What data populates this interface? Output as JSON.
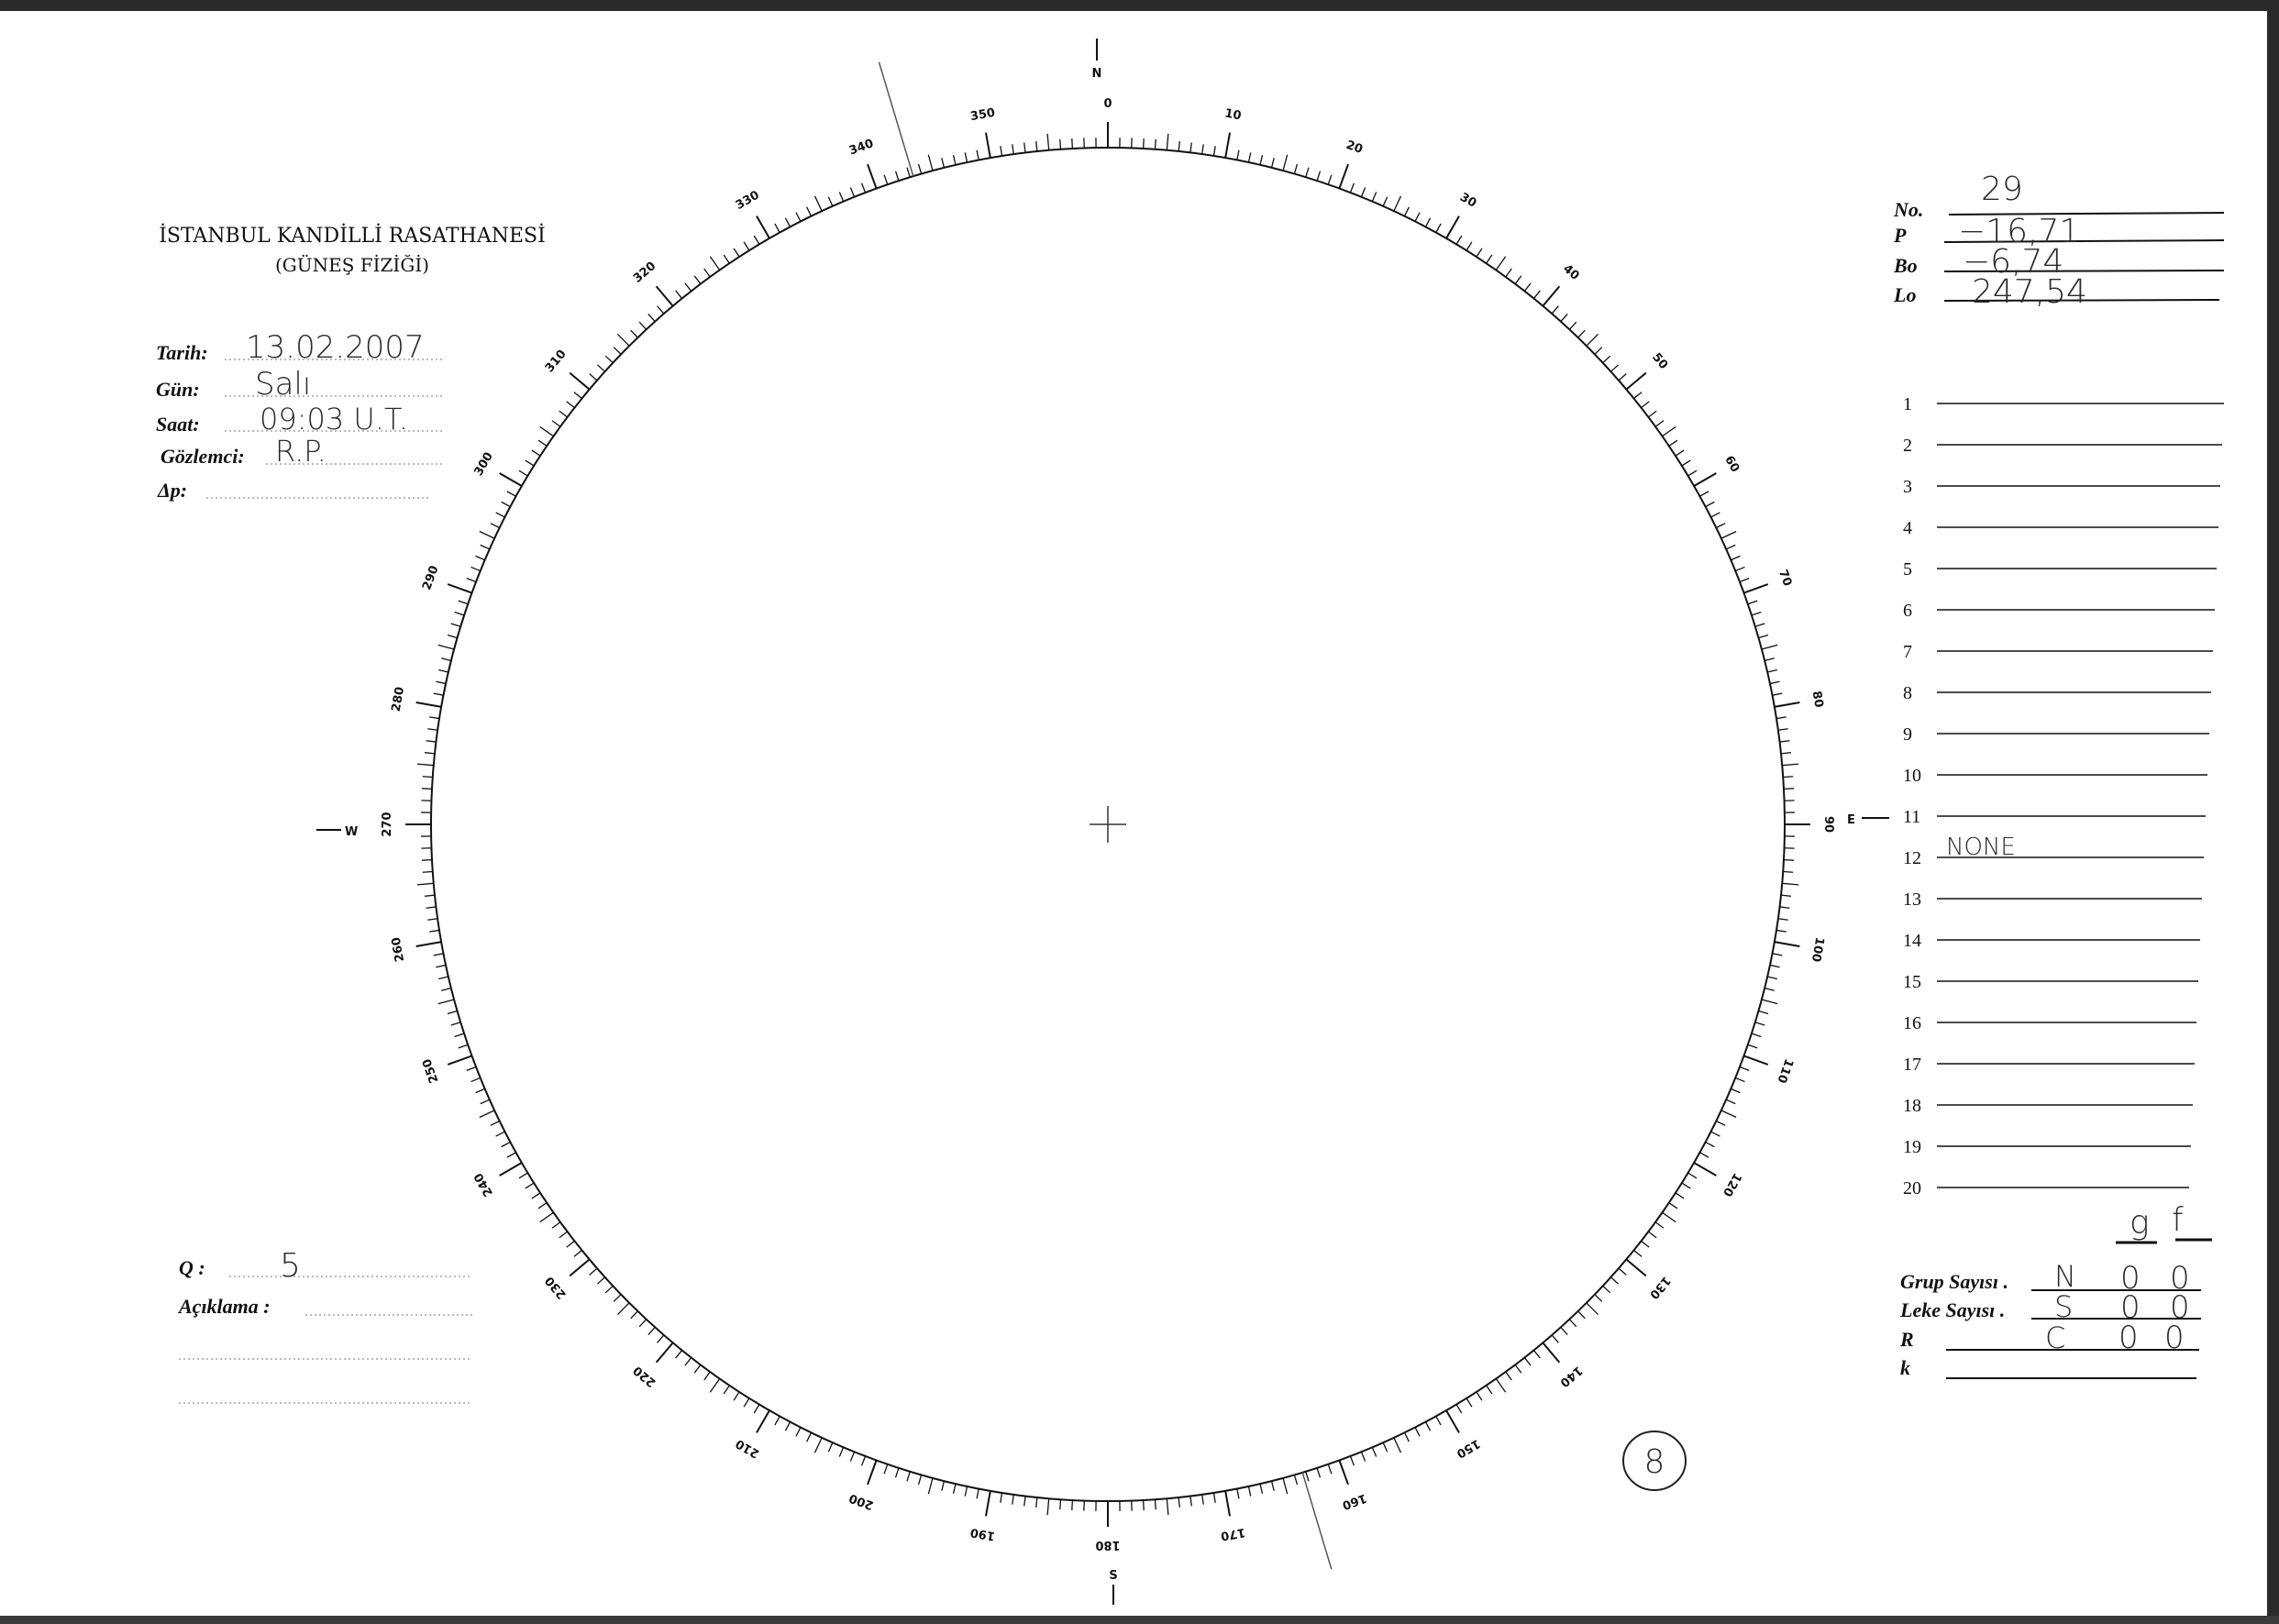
{
  "header": {
    "institution": "İSTANBUL KANDİLLİ RASATHANESİ",
    "department": "(GÜNEŞ FİZİĞİ)"
  },
  "observation": {
    "date_label": "Tarih:",
    "date_value": "13.02.2007",
    "day_label": "Gün:",
    "day_value": "Salı",
    "time_label": "Saat:",
    "time_value": "09:03 U.T.",
    "observer_label": "Gözlemci:",
    "observer_value": "R.P.",
    "dp_label": "Δp:",
    "dp_value": ""
  },
  "ephemeris": {
    "no_label": "No.",
    "no_value": "29",
    "p_label": "P",
    "p_value": "−16,71",
    "bo_label": "Bo",
    "bo_value": "−6,74",
    "lo_label": "Lo",
    "lo_value": "247,54"
  },
  "groups": {
    "rows": [
      "1",
      "2",
      "3",
      "4",
      "5",
      "6",
      "7",
      "8",
      "9",
      "10",
      "11",
      "12",
      "13",
      "14",
      "15",
      "16",
      "17",
      "18",
      "19",
      "20"
    ],
    "notes": {
      "12": "NONE"
    }
  },
  "counts": {
    "col_g": "g",
    "col_f": "f",
    "group_count_label": "Grup Sayısı .",
    "spot_count_label": "Leke Sayısı .",
    "r_label": "R",
    "k_label": "k",
    "rows": [
      {
        "hemisphere": "N",
        "g": "0",
        "f": "0"
      },
      {
        "hemisphere": "S",
        "g": "0",
        "f": "0"
      },
      {
        "hemisphere": "C",
        "g": "0",
        "f": "0"
      }
    ]
  },
  "quality": {
    "q_label": "Q :",
    "q_value": "5",
    "remarks_label": "Açıklama :"
  },
  "dial": {
    "north": "N",
    "south": "S",
    "east": "E",
    "west": "W",
    "labels": [
      "0",
      "10",
      "20",
      "30",
      "40",
      "50",
      "60",
      "70",
      "80",
      "90",
      "100",
      "110",
      "120",
      "130",
      "140",
      "150",
      "160",
      "170",
      "180",
      "190",
      "200",
      "210",
      "220",
      "230",
      "240",
      "250",
      "260",
      "270",
      "280",
      "290",
      "300",
      "310",
      "320",
      "330",
      "340",
      "350"
    ],
    "p_angle_deg": -16.71
  },
  "sheet_mark": "8"
}
